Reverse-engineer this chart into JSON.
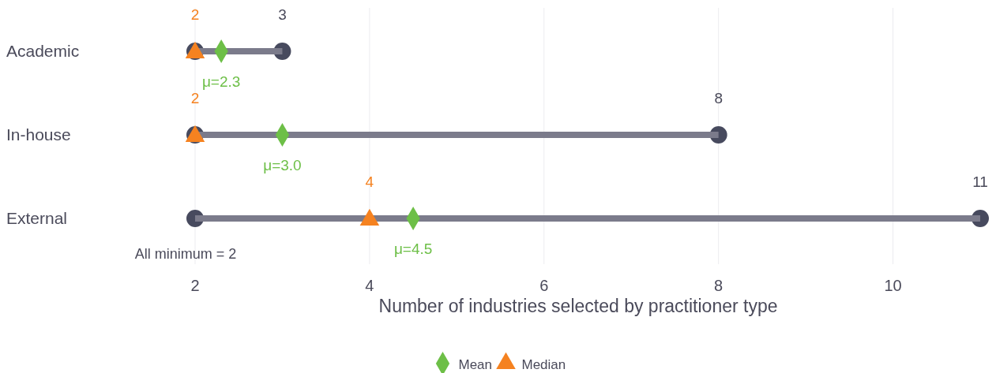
{
  "chart_data": {
    "type": "bar",
    "orientation": "horizontal",
    "xlabel": "Number of industries selected by practitioner type",
    "categories": [
      "Academic",
      "In-house",
      "External"
    ],
    "xlim": [
      2,
      11
    ],
    "xticks": [
      2,
      4,
      6,
      8,
      10
    ],
    "grid": "x",
    "legend": "bottom",
    "series": [
      {
        "type": "scatter",
        "marker": "circle",
        "color": "#474a5e",
        "values": [
          2,
          2,
          2
        ]
      },
      {
        "type": "scatter",
        "marker": "circle",
        "color": "#474a5e",
        "values": [
          3,
          8,
          11
        ],
        "value_labels": [
          "3",
          "8",
          "11"
        ]
      },
      {
        "color": "#7b7b8b",
        "base": [
          2,
          2,
          2
        ],
        "values": [
          1,
          6,
          9
        ]
      },
      {
        "type": "scatter",
        "marker": "diamond",
        "name": "Mean",
        "color": "#6dbf47",
        "values": [
          2.3,
          3.0,
          4.5
        ],
        "value_labels": [
          "μ=2.3",
          "μ=3.0",
          "μ=4.5"
        ]
      },
      {
        "type": "scatter",
        "marker": "triangle",
        "name": "Median",
        "color": "#f58220",
        "values": [
          2,
          2,
          4
        ],
        "value_labels": [
          "2",
          "2",
          "4"
        ]
      }
    ],
    "annotations": [
      {
        "text": "All minimum = 2",
        "x": 2,
        "y": "External"
      }
    ]
  }
}
